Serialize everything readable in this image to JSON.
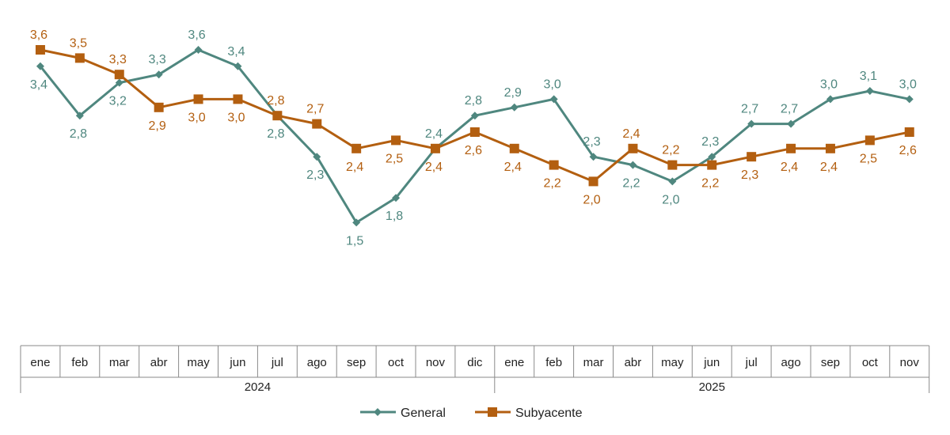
{
  "chart_data": {
    "type": "line",
    "title": "",
    "xlabel": "",
    "ylabel": "",
    "ylim": [
      0,
      3.7
    ],
    "grid": false,
    "legend_position": "bottom",
    "years": [
      {
        "label": "2024",
        "months": 12
      },
      {
        "label": "2025",
        "months": 11
      }
    ],
    "categories": [
      "ene",
      "feb",
      "mar",
      "abr",
      "may",
      "jun",
      "jul",
      "ago",
      "sep",
      "oct",
      "nov",
      "dic",
      "ene",
      "feb",
      "mar",
      "abr",
      "may",
      "jun",
      "jul",
      "ago",
      "sep",
      "oct",
      "nov"
    ],
    "series": [
      {
        "name": "General",
        "color": "#4f877f",
        "marker": "diamond",
        "values": [
          3.4,
          2.8,
          3.2,
          3.3,
          3.6,
          3.4,
          2.8,
          2.3,
          1.5,
          1.8,
          2.4,
          2.8,
          2.9,
          3.0,
          2.3,
          2.2,
          2.0,
          2.3,
          2.7,
          2.7,
          3.0,
          3.1,
          3.0
        ],
        "labels": [
          "3,4",
          "2,8",
          "3,2",
          "3,3",
          "3,6",
          "3,4",
          "2,8",
          "2,3",
          "1,5",
          "1,8",
          "2,4",
          "2,8",
          "2,9",
          "3,0",
          "2,3",
          "2,2",
          "2,0",
          "2,3",
          "2,7",
          "2,7",
          "3,0",
          "3,1",
          "3,0"
        ]
      },
      {
        "name": "Subyacente",
        "color": "#b35f10",
        "marker": "square",
        "values": [
          3.6,
          3.5,
          3.3,
          2.9,
          3.0,
          3.0,
          2.8,
          2.7,
          2.4,
          2.5,
          2.4,
          2.6,
          2.4,
          2.2,
          2.0,
          2.4,
          2.2,
          2.2,
          2.3,
          2.4,
          2.4,
          2.5,
          2.6
        ],
        "labels": [
          "3,6",
          "3,5",
          "3,3",
          "2,9",
          "3,0",
          "3,0",
          "2,8",
          "2,7",
          "2,4",
          "2,5",
          "2,4",
          "2,6",
          "2,4",
          "2,2",
          "2,0",
          "2,4",
          "2,2",
          "2,2",
          "2,3",
          "2,4",
          "2,4",
          "2,5",
          "2,6"
        ]
      }
    ]
  }
}
